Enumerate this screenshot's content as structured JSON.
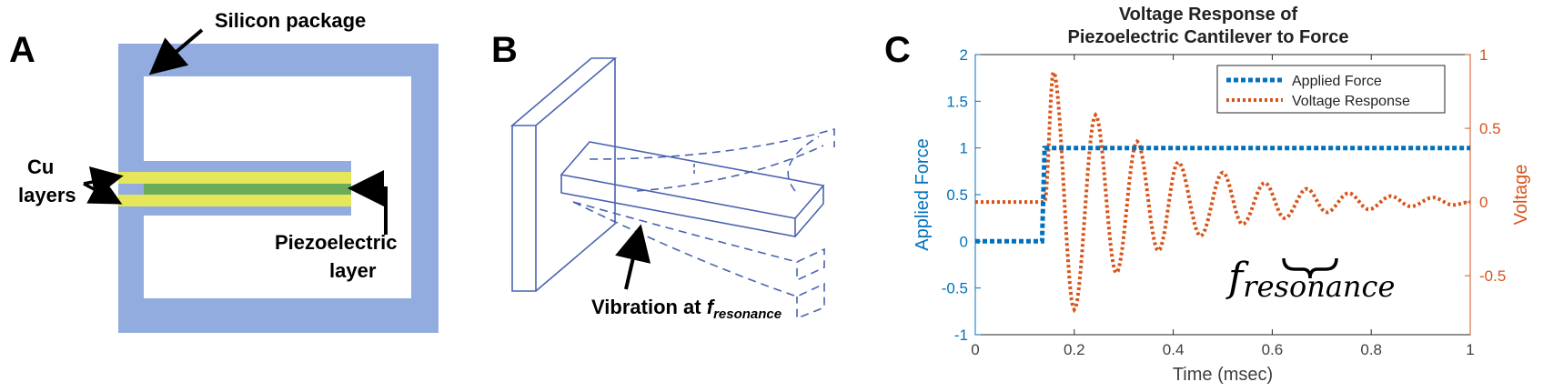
{
  "colors": {
    "silicon": "#92acdf",
    "copper_layer": "#e5e65a",
    "piezo_layer": "#6aac5a",
    "force_blue": "#0072bd",
    "voltage_orange": "#d95319",
    "sketch_blue": "#4a63b0"
  },
  "panel_a": {
    "letter": "A",
    "silicon_label": "Silicon package",
    "cu_label_line1": "Cu",
    "cu_label_line2": "layers",
    "piezo_label_line1": "Piezoelectric",
    "piezo_label_line2": "layer"
  },
  "panel_b": {
    "letter": "B",
    "vibration_label": "Vibration at ",
    "f_symbol": "f",
    "f_subscript": "resonance"
  },
  "panel_c": {
    "letter": "C",
    "annotation_f": "f",
    "annotation_sub": "resonance"
  },
  "chart_data": {
    "type": "line",
    "title_line1": "Voltage Response of",
    "title_line2": "Piezoelectric Cantilever to Force",
    "xlabel": "Time (msec)",
    "ylabel_left": "Applied Force",
    "ylabel_right": "Voltage",
    "xlim": [
      0,
      1
    ],
    "ylim_left": [
      -1,
      2
    ],
    "ylim_right": [
      -0.9,
      1
    ],
    "x_ticks": [
      "0",
      "0.2",
      "0.4",
      "0.6",
      "0.8",
      "1"
    ],
    "y_left_ticks": [
      "-1",
      "-0.5",
      "0",
      "0.5",
      "1",
      "1.5",
      "2"
    ],
    "y_right_ticks": [
      "-0.5",
      "0",
      "0.5",
      "1"
    ],
    "legend_position": "top-right",
    "grid": false,
    "series": [
      {
        "name": "Applied Force",
        "axis": "left",
        "x": [
          0,
          0.135,
          0.14,
          1
        ],
        "y": [
          0,
          0,
          1,
          1
        ]
      },
      {
        "name": "Voltage Response",
        "axis": "right",
        "signal": {
          "baseline_before_step": 0,
          "step_time": 0.14,
          "initial_amplitude": 0.88,
          "peak_times": [
            0.158,
            0.243,
            0.327,
            0.41,
            0.5,
            0.585,
            0.67,
            0.755,
            0.84,
            0.925
          ],
          "peak_values": [
            0.88,
            0.59,
            0.41,
            0.27,
            0.2,
            0.13,
            0.09,
            0.06,
            0.04,
            0.03
          ],
          "trough_times": [
            0.2,
            0.285,
            0.37,
            0.455,
            0.54,
            0.625,
            0.71,
            0.795,
            0.88,
            0.965
          ],
          "trough_values": [
            -0.73,
            -0.48,
            -0.33,
            -0.23,
            -0.15,
            -0.11,
            -0.07,
            -0.05,
            -0.03,
            -0.02
          ]
        }
      }
    ]
  }
}
